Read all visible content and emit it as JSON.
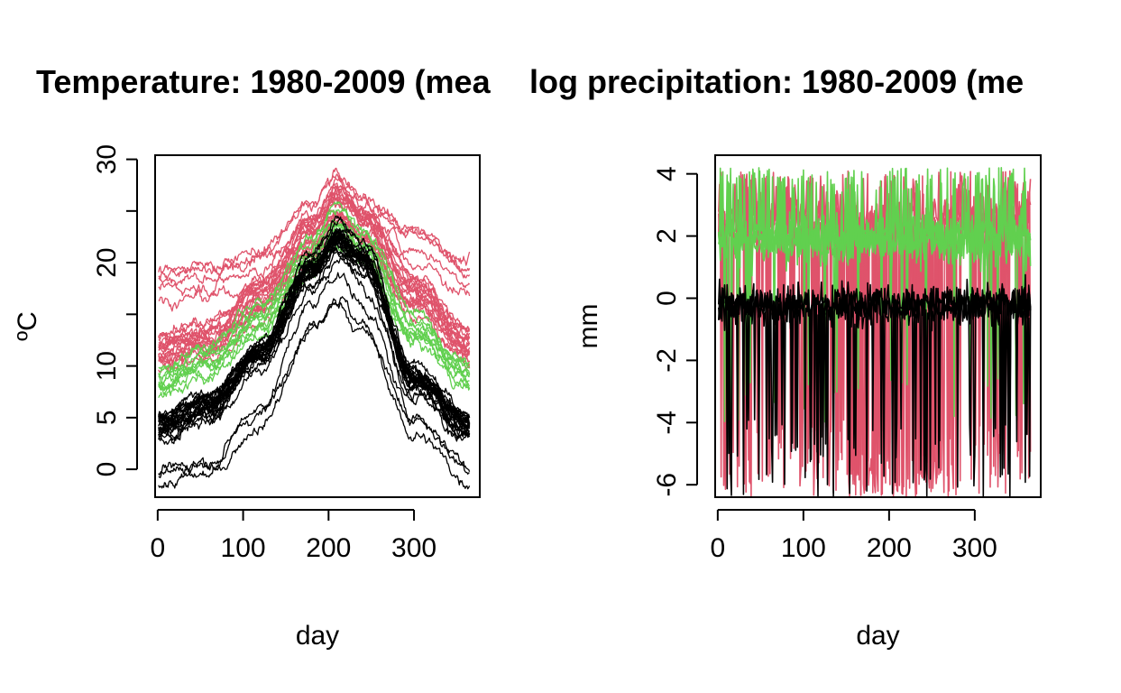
{
  "figure": {
    "title_left": "Temperature: 1980-2009 (mea",
    "title_right": "log precipitation: 1980-2009 (me"
  },
  "colors": {
    "black": "#000000",
    "red": "#DF536B",
    "green": "#61D04F"
  },
  "chart_data": [
    {
      "type": "line",
      "xlabel": "day",
      "ylabel": "ºC",
      "xlim": [
        -3,
        377
      ],
      "ylim": [
        -2.7,
        30.4
      ],
      "x_ticks": [
        0,
        100,
        200,
        300
      ],
      "x_tick_labels": [
        "0",
        "100",
        "200",
        "300"
      ],
      "y_ticks": [
        0,
        5,
        10,
        15,
        20,
        25,
        30
      ],
      "y_tick_labels": [
        "0",
        "5",
        "10",
        "",
        "20",
        "",
        "30"
      ],
      "grid": false,
      "series": [
        {
          "color": "red",
          "count": 18,
          "x": [
            1,
            60,
            120,
            180,
            210,
            240,
            300,
            365
          ],
          "y": [
            11.5,
            12.5,
            16.5,
            22.5,
            25.5,
            23.5,
            17.0,
            12.0
          ]
        },
        {
          "color": "red",
          "count": 5,
          "x": [
            1,
            60,
            120,
            180,
            210,
            240,
            300,
            365
          ],
          "y": [
            18.0,
            18.5,
            20.0,
            24.5,
            27.5,
            25.0,
            22.0,
            19.0
          ]
        },
        {
          "color": "green",
          "count": 10,
          "x": [
            1,
            60,
            120,
            180,
            210,
            240,
            300,
            365
          ],
          "y": [
            8.5,
            10.5,
            14.5,
            20.5,
            23.5,
            21.5,
            13.5,
            9.0
          ]
        },
        {
          "color": "black",
          "count": 24,
          "x": [
            1,
            60,
            120,
            180,
            210,
            240,
            300,
            365
          ],
          "y": [
            4.5,
            6.5,
            11.5,
            19.5,
            22.5,
            20.5,
            9.0,
            4.5
          ]
        },
        {
          "color": "black",
          "count": 3,
          "x": [
            1,
            60,
            120,
            180,
            210,
            240,
            300,
            365
          ],
          "y": [
            0.0,
            1.0,
            6.0,
            15.0,
            18.0,
            15.0,
            5.0,
            0.5
          ]
        }
      ]
    },
    {
      "type": "line",
      "xlabel": "day",
      "ylabel": "mm",
      "xlim": [
        -3,
        377
      ],
      "ylim": [
        -6.4,
        4.6
      ],
      "x_ticks": [
        0,
        100,
        200,
        300
      ],
      "x_tick_labels": [
        "0",
        "100",
        "200",
        "300"
      ],
      "y_ticks": [
        -6,
        -4,
        -2,
        0,
        2,
        4
      ],
      "y_tick_labels": [
        "-6",
        "-4",
        "-2",
        "0",
        "2",
        "4"
      ],
      "grid": false,
      "series": [
        {
          "color": "red",
          "role": "upper",
          "typical": 2.6,
          "peak": 4.1,
          "dip": -6.4
        },
        {
          "color": "green",
          "role": "upper",
          "typical": 1.9,
          "peak": 4.2,
          "dip": -4.0
        },
        {
          "color": "black",
          "role": "center",
          "typical": -0.2,
          "peak": 2.0,
          "dip": -6.4
        }
      ]
    }
  ]
}
